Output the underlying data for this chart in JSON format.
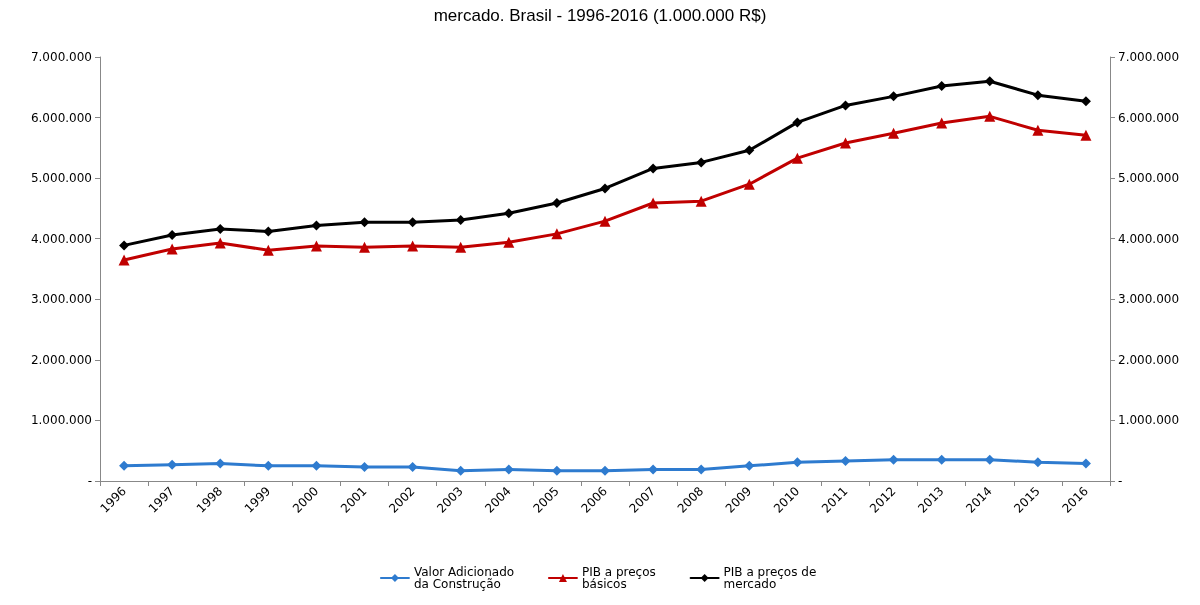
{
  "chart_data": {
    "type": "line",
    "title": "mercado. Brasil - 1996-2016 (1.000.000 R$)",
    "categories": [
      "1996",
      "1997",
      "1998",
      "1999",
      "2000",
      "2001",
      "2002",
      "2003",
      "2004",
      "2005",
      "2006",
      "2007",
      "2008",
      "2009",
      "2010",
      "2011",
      "2012",
      "2013",
      "2014",
      "2015",
      "2016"
    ],
    "series": [
      {
        "name": "Valor Adicionado da Construção",
        "color": "#2e7bcf",
        "marker": "diamond",
        "values": [
          250000,
          270000,
          290000,
          250000,
          250000,
          230000,
          230000,
          170000,
          190000,
          170000,
          170000,
          190000,
          190000,
          250000,
          310000,
          330000,
          350000,
          350000,
          350000,
          310000,
          290000
        ]
      },
      {
        "name": "PIB a preços básicos",
        "color": "#c00000",
        "marker": "triangle",
        "values": [
          3650000,
          3830000,
          3930000,
          3810000,
          3880000,
          3860000,
          3880000,
          3860000,
          3940000,
          4080000,
          4290000,
          4590000,
          4620000,
          4900000,
          5330000,
          5580000,
          5740000,
          5910000,
          6020000,
          5790000,
          5710000
        ]
      },
      {
        "name": "PIB a preços de mercado",
        "color": "#000000",
        "marker": "diamond",
        "values": [
          3890000,
          4060000,
          4160000,
          4120000,
          4220000,
          4270000,
          4270000,
          4310000,
          4420000,
          4590000,
          4830000,
          5160000,
          5260000,
          5460000,
          5920000,
          6200000,
          6350000,
          6520000,
          6600000,
          6370000,
          6270000
        ]
      }
    ],
    "ylim": [
      0,
      7000000
    ],
    "yticks": [
      {
        "value": 0,
        "label": "-"
      },
      {
        "value": 1000000,
        "label": "1.000.000"
      },
      {
        "value": 2000000,
        "label": "2.000.000"
      },
      {
        "value": 3000000,
        "label": "3.000.000"
      },
      {
        "value": 4000000,
        "label": "4.000.000"
      },
      {
        "value": 5000000,
        "label": "5.000.000"
      },
      {
        "value": 6000000,
        "label": "6.000.000"
      },
      {
        "value": 7000000,
        "label": "7.000.000"
      }
    ],
    "y2lim": [
      0,
      7000000
    ],
    "y2ticks": [
      {
        "value": 0,
        "label": "-"
      },
      {
        "value": 1000000,
        "label": "1.000.000"
      },
      {
        "value": 2000000,
        "label": "2.000.000"
      },
      {
        "value": 3000000,
        "label": "3.000.000"
      },
      {
        "value": 4000000,
        "label": "4.000.000"
      },
      {
        "value": 5000000,
        "label": "5.000.000"
      },
      {
        "value": 6000000,
        "label": "6.000.000"
      },
      {
        "value": 7000000,
        "label": "7.000.000"
      }
    ],
    "grid": false,
    "legend": "bottom",
    "line_style": "solid"
  }
}
